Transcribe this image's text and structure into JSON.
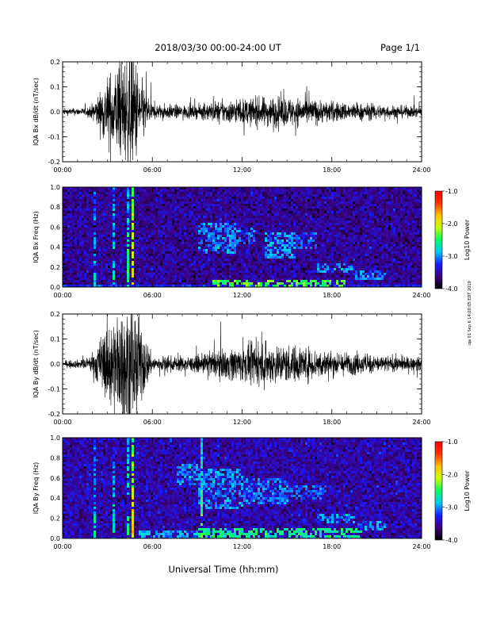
{
  "header": {
    "title": "2018/03/30  00:00-24:00 UT",
    "page": "Page 1/1"
  },
  "footer": {
    "xlabel": "Universal Time (hh:mm)",
    "side_note": "iqa 01 Sep 6 14:00:05 EDT 2019"
  },
  "colorbar": {
    "label": "Log10 Power",
    "ticks": [
      "-1.0",
      "-2.0",
      "-3.0",
      "-4.0"
    ],
    "range": [
      -4.0,
      -1.0
    ],
    "colors": [
      "#000000",
      "#3a007a",
      "#1a1aff",
      "#00c8ff",
      "#00ff60",
      "#c8ff00",
      "#ffc000",
      "#ff3000",
      "#ff0000"
    ]
  },
  "chart_data": [
    {
      "type": "line",
      "ylabel": "IQA Bx dB/dt (nT/sec)",
      "yticks": [
        "0.2",
        "0.1",
        "0.0",
        "-0.1",
        "-0.2"
      ],
      "ylim": [
        -0.2,
        0.2
      ],
      "xlim": [
        0,
        24
      ],
      "xticks": [
        "00:00",
        "06:00",
        "12:00",
        "18:00",
        "24:00"
      ],
      "activity": [
        {
          "t": 0,
          "a": 0.012
        },
        {
          "t": 1.5,
          "a": 0.015
        },
        {
          "t": 2.0,
          "a": 0.03
        },
        {
          "t": 2.5,
          "a": 0.08
        },
        {
          "t": 3.0,
          "a": 0.14
        },
        {
          "t": 3.5,
          "a": 0.18
        },
        {
          "t": 4.0,
          "a": 0.2
        },
        {
          "t": 4.7,
          "a": 0.25
        },
        {
          "t": 5.3,
          "a": 0.12
        },
        {
          "t": 6.0,
          "a": 0.03
        },
        {
          "t": 9.0,
          "a": 0.025
        },
        {
          "t": 10.0,
          "a": 0.04
        },
        {
          "t": 12.0,
          "a": 0.05
        },
        {
          "t": 14.0,
          "a": 0.06
        },
        {
          "t": 16.0,
          "a": 0.055
        },
        {
          "t": 18.0,
          "a": 0.04
        },
        {
          "t": 21.0,
          "a": 0.03
        },
        {
          "t": 24.0,
          "a": 0.02
        }
      ]
    },
    {
      "type": "heatmap",
      "ylabel": "IQA Bx Freq (Hz)",
      "yticks": [
        "1.0",
        "0.8",
        "0.6",
        "0.4",
        "0.2",
        "0.0"
      ],
      "ylim": [
        0.0,
        1.0
      ],
      "xlim": [
        0,
        24
      ],
      "xticks": [
        "00:00",
        "06:00",
        "12:00",
        "18:00",
        "24:00"
      ],
      "background_level": -3.55,
      "features": [
        {
          "t0": 9.0,
          "t1": 11.5,
          "f0": 0.35,
          "f1": 0.65,
          "level": -3.0
        },
        {
          "t0": 11.0,
          "t1": 13.0,
          "f0": 0.45,
          "f1": 0.6,
          "level": -3.1
        },
        {
          "t0": 13.5,
          "t1": 15.5,
          "f0": 0.3,
          "f1": 0.55,
          "level": -2.95
        },
        {
          "t0": 15.5,
          "t1": 17.0,
          "f0": 0.4,
          "f1": 0.55,
          "level": -3.1
        },
        {
          "t0": 17.0,
          "t1": 19.5,
          "f0": 0.15,
          "f1": 0.25,
          "level": -3.0
        },
        {
          "t0": 19.5,
          "t1": 21.5,
          "f0": 0.08,
          "f1": 0.18,
          "level": -3.0
        },
        {
          "t0": 10.0,
          "t1": 19.0,
          "f0": 0.0,
          "f1": 0.08,
          "level": -2.4
        }
      ],
      "spikes": [
        {
          "t": 2.1,
          "level": -2.7
        },
        {
          "t": 3.3,
          "level": -2.6
        },
        {
          "t": 4.3,
          "level": -2.4
        },
        {
          "t": 4.55,
          "level": -1.8
        },
        {
          "t": 5.0,
          "level": -2.5
        }
      ]
    },
    {
      "type": "line",
      "ylabel": "IQA By dB/dt (nT/sec)",
      "yticks": [
        "0.2",
        "0.1",
        "0.0",
        "-0.1",
        "-0.2"
      ],
      "ylim": [
        -0.2,
        0.2
      ],
      "xlim": [
        0,
        24
      ],
      "xticks": [
        "00:00",
        "06:00",
        "12:00",
        "18:00",
        "24:00"
      ],
      "activity": [
        {
          "t": 0,
          "a": 0.012
        },
        {
          "t": 1.5,
          "a": 0.018
        },
        {
          "t": 2.0,
          "a": 0.04
        },
        {
          "t": 2.5,
          "a": 0.1
        },
        {
          "t": 3.0,
          "a": 0.16
        },
        {
          "t": 3.5,
          "a": 0.2
        },
        {
          "t": 4.0,
          "a": 0.22
        },
        {
          "t": 4.7,
          "a": 0.25
        },
        {
          "t": 5.3,
          "a": 0.15
        },
        {
          "t": 6.0,
          "a": 0.03
        },
        {
          "t": 9.0,
          "a": 0.03
        },
        {
          "t": 10.0,
          "a": 0.05
        },
        {
          "t": 12.0,
          "a": 0.07
        },
        {
          "t": 14.0,
          "a": 0.08
        },
        {
          "t": 16.0,
          "a": 0.07
        },
        {
          "t": 18.0,
          "a": 0.05
        },
        {
          "t": 21.0,
          "a": 0.035
        },
        {
          "t": 24.0,
          "a": 0.025
        }
      ]
    },
    {
      "type": "heatmap",
      "ylabel": "IQA By Freq (Hz)",
      "yticks": [
        "1.0",
        "0.8",
        "0.6",
        "0.4",
        "0.2",
        "0.0"
      ],
      "ylim": [
        0.0,
        1.0
      ],
      "xlim": [
        0,
        24
      ],
      "xticks": [
        "00:00",
        "06:00",
        "12:00",
        "18:00",
        "24:00"
      ],
      "background_level": -3.5,
      "features": [
        {
          "t0": 7.5,
          "t1": 9.0,
          "f0": 0.55,
          "f1": 0.75,
          "level": -3.0
        },
        {
          "t0": 9.0,
          "t1": 12.0,
          "f0": 0.3,
          "f1": 0.7,
          "level": -3.0
        },
        {
          "t0": 12.0,
          "t1": 15.0,
          "f0": 0.35,
          "f1": 0.6,
          "level": -3.05
        },
        {
          "t0": 15.0,
          "t1": 17.5,
          "f0": 0.4,
          "f1": 0.55,
          "level": -3.1
        },
        {
          "t0": 17.0,
          "t1": 19.5,
          "f0": 0.15,
          "f1": 0.25,
          "level": -3.0
        },
        {
          "t0": 19.5,
          "t1": 21.5,
          "f0": 0.08,
          "f1": 0.18,
          "level": -3.0
        },
        {
          "t0": 9.0,
          "t1": 20.0,
          "f0": 0.0,
          "f1": 0.12,
          "level": -2.6
        },
        {
          "t0": 5.0,
          "t1": 9.0,
          "f0": 0.0,
          "f1": 0.08,
          "level": -2.9
        }
      ],
      "spikes": [
        {
          "t": 1.5,
          "level": -2.9
        },
        {
          "t": 2.1,
          "level": -2.7
        },
        {
          "t": 3.3,
          "level": -2.6
        },
        {
          "t": 4.3,
          "level": -2.4
        },
        {
          "t": 4.55,
          "level": -1.8
        },
        {
          "t": 5.0,
          "level": -2.5
        },
        {
          "t": 9.2,
          "level": -2.3
        }
      ]
    }
  ]
}
